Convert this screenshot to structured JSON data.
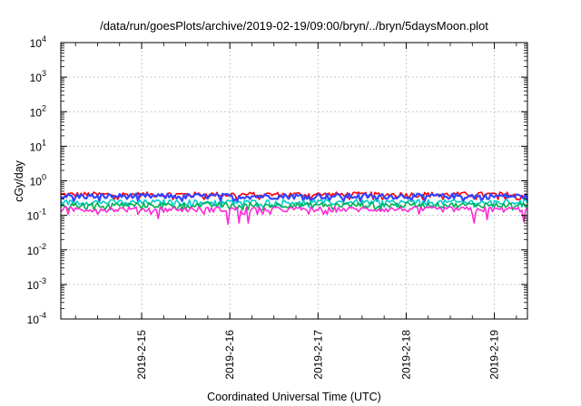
{
  "chart_data": {
    "type": "line",
    "title": "/data/run/goesPlots/archive/2019-02-19/09:00/bryn/../bryn/5daysMoon.plot",
    "xlabel": "Coordinated Universal Time (UTC)",
    "ylabel": "cGy/day",
    "y_scale": "log",
    "ylim": [
      0.0001,
      10000
    ],
    "y_ticks": [
      {
        "value": 0.0001,
        "base": "10",
        "exp": "-4"
      },
      {
        "value": 0.001,
        "base": "10",
        "exp": "-3"
      },
      {
        "value": 0.01,
        "base": "10",
        "exp": "-2"
      },
      {
        "value": 0.1,
        "base": "10",
        "exp": "-1"
      },
      {
        "value": 1,
        "base": "10",
        "exp": "0"
      },
      {
        "value": 10,
        "base": "10",
        "exp": "1"
      },
      {
        "value": 100,
        "base": "10",
        "exp": "2"
      },
      {
        "value": 1000,
        "base": "10",
        "exp": "3"
      },
      {
        "value": 10000,
        "base": "10",
        "exp": "4"
      }
    ],
    "xlim": [
      "2019-02-14T02:00",
      "2019-02-19T09:00"
    ],
    "x_ticks": [
      "2019-2-15",
      "2019-2-16",
      "2019-2-17",
      "2019-2-18",
      "2019-2-19"
    ],
    "x_tick_dates": [
      "2019-02-15",
      "2019-02-16",
      "2019-02-17",
      "2019-02-18",
      "2019-02-19"
    ],
    "grid": true,
    "series": [
      {
        "color": "#ff0000",
        "baseline": 0.4,
        "dips": []
      },
      {
        "color": "#3344ff",
        "baseline": 0.36,
        "dips": []
      },
      {
        "color": "#00cccc",
        "baseline": 0.24,
        "dips": []
      },
      {
        "color": "#00b050",
        "baseline": 0.2,
        "dips": []
      },
      {
        "color": "#ff2bd6",
        "baseline": 0.15,
        "dips": [
          {
            "t": "2019-02-15T04:30",
            "value": 0.08
          },
          {
            "t": "2019-02-15T23:30",
            "value": 0.055
          },
          {
            "t": "2019-02-16T02:30",
            "value": 0.06
          },
          {
            "t": "2019-02-16T05:00",
            "value": 0.06
          },
          {
            "t": "2019-02-18T18:30",
            "value": 0.06
          },
          {
            "t": "2019-02-18T22:00",
            "value": 0.075
          },
          {
            "t": "2019-02-19T08:00",
            "value": 0.065
          }
        ]
      }
    ]
  }
}
